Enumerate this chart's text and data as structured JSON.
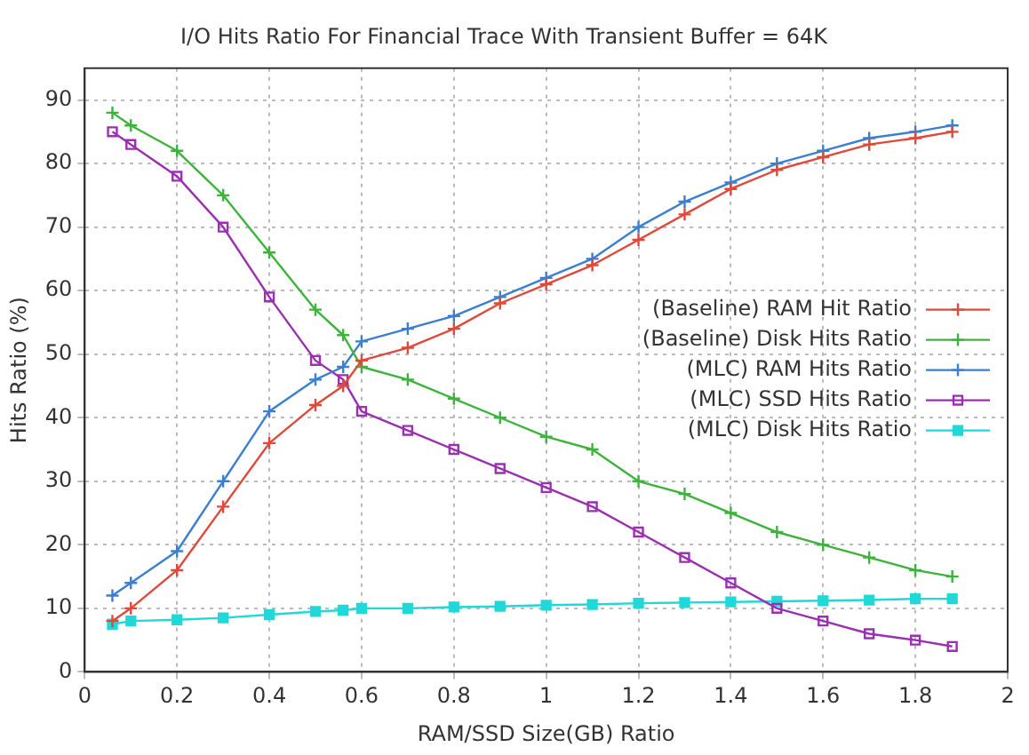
{
  "chart_data": {
    "type": "line",
    "title": "I/O Hits Ratio For Financial Trace With Transient Buffer = 64K",
    "xlabel": "RAM/SSD Size(GB) Ratio",
    "ylabel": "Hits Ratio (%)",
    "x": [
      0.06,
      0.1,
      0.2,
      0.3,
      0.4,
      0.5,
      0.56,
      0.6,
      0.7,
      0.8,
      0.9,
      1.0,
      1.1,
      1.2,
      1.3,
      1.4,
      1.5,
      1.6,
      1.7,
      1.8,
      1.88
    ],
    "series": [
      {
        "name": "(Baseline) RAM Hit Ratio",
        "color": "#e0483a",
        "marker": "cross",
        "values": [
          8,
          10,
          16,
          26,
          36,
          42,
          45,
          49,
          51,
          54,
          58,
          61,
          64,
          68,
          72,
          76,
          79,
          81,
          83,
          84,
          85
        ]
      },
      {
        "name": "(Baseline) Disk Hits Ratio",
        "color": "#3cb43c",
        "marker": "cross",
        "values": [
          88,
          86,
          82,
          75,
          66,
          57,
          53,
          48,
          46,
          43,
          40,
          37,
          35,
          30,
          28,
          25,
          22,
          20,
          18,
          16,
          15
        ]
      },
      {
        "name": "(MLC) RAM Hits Ratio",
        "color": "#3a7fd0",
        "marker": "cross",
        "values": [
          12,
          14,
          19,
          30,
          41,
          46,
          48,
          52,
          54,
          56,
          59,
          62,
          65,
          70,
          74,
          77,
          80,
          82,
          84,
          85,
          86
        ]
      },
      {
        "name": "(MLC) SSD Hits Ratio",
        "color": "#9a30b0",
        "marker": "square",
        "values": [
          85,
          83,
          78,
          70,
          59,
          49,
          46,
          41,
          38,
          35,
          32,
          29,
          26,
          22,
          18,
          14,
          10,
          8,
          6,
          5,
          4
        ]
      },
      {
        "name": "(MLC) Disk Hits Ratio",
        "color": "#20d8d8",
        "marker": "square",
        "values": [
          7.5,
          8,
          8.2,
          8.5,
          9,
          9.5,
          9.7,
          10,
          10,
          10.2,
          10.3,
          10.5,
          10.6,
          10.8,
          10.9,
          11,
          11.1,
          11.2,
          11.3,
          11.5,
          11.5
        ]
      }
    ],
    "xlim": [
      0,
      2
    ],
    "xticks": [
      0,
      0.2,
      0.4,
      0.6,
      0.8,
      1,
      1.2,
      1.4,
      1.6,
      1.8,
      2
    ],
    "ylim": [
      0,
      95
    ],
    "yticks": [
      0,
      10,
      20,
      30,
      40,
      50,
      60,
      70,
      80,
      90
    ],
    "grid": true,
    "legend": "right"
  }
}
